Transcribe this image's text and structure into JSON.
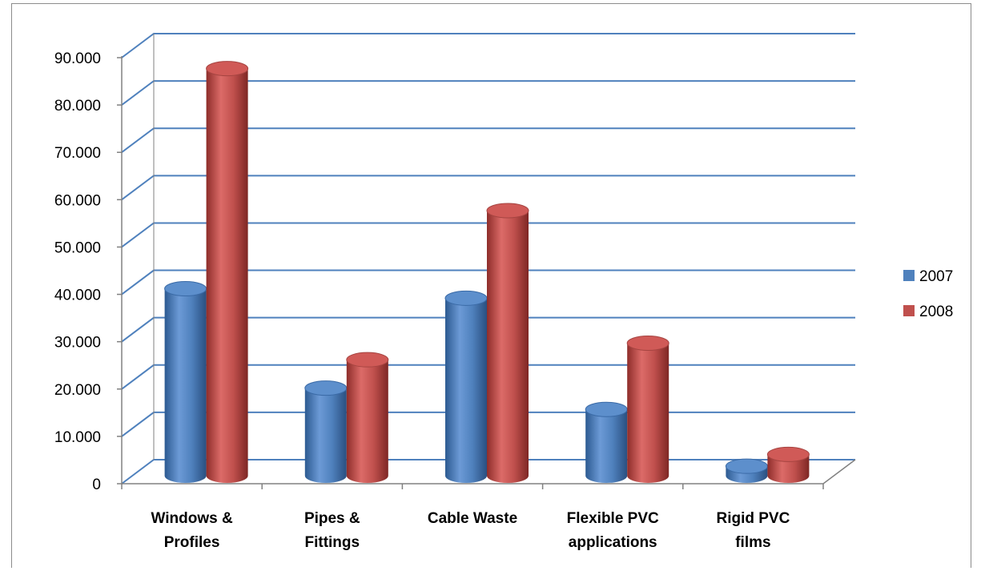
{
  "chart_data": {
    "type": "bar",
    "title": "",
    "xlabel": "",
    "ylabel": "",
    "categories": [
      [
        "Windows &",
        "Profiles"
      ],
      [
        "Pipes &",
        "Fittings"
      ],
      [
        "Cable Waste"
      ],
      [
        "Flexible PVC",
        "applications"
      ],
      [
        "Rigid PVC",
        "films"
      ]
    ],
    "series": [
      {
        "name": "2007",
        "color": "#4f81bd",
        "values": [
          39.5,
          18.5,
          37.5,
          14,
          2
        ]
      },
      {
        "name": "2008",
        "color": "#c0504d",
        "values": [
          86,
          24.5,
          56,
          28,
          4.5
        ]
      }
    ],
    "ylim": [
      0,
      90
    ],
    "yticks": [
      "0",
      "10.000",
      "20.000",
      "30.000",
      "40.000",
      "50.000",
      "60.000",
      "70.000",
      "80.000",
      "90.000"
    ],
    "grid": true,
    "gridline_color": "#4f81bd",
    "legend_position": "right",
    "style": "3d-cylinder"
  }
}
